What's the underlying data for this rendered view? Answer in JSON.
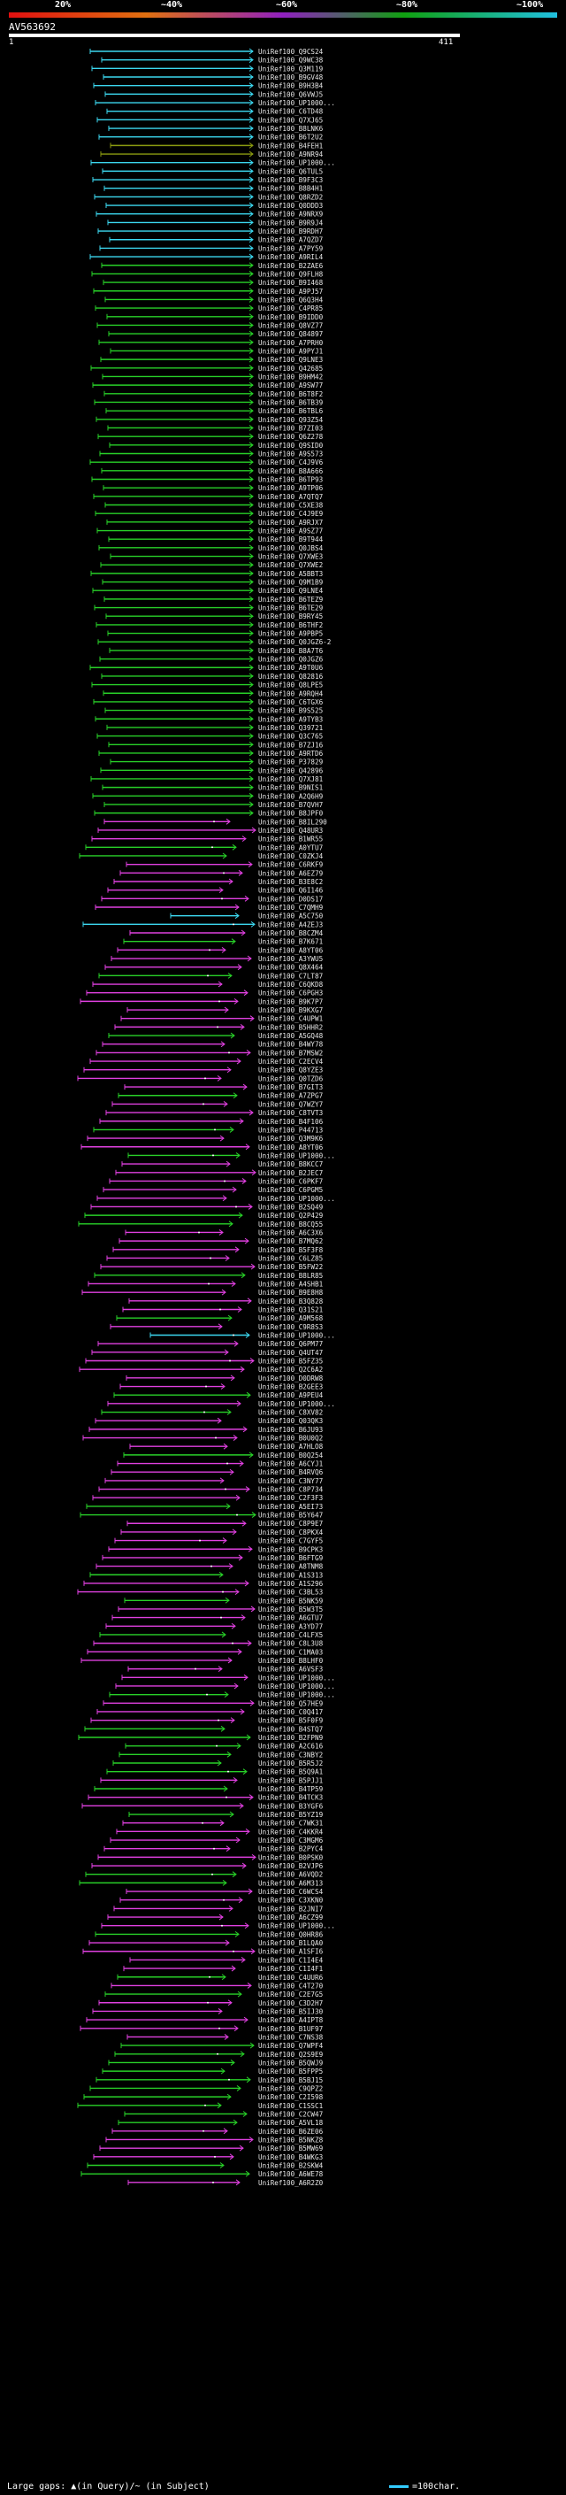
{
  "header": {
    "scale_labels": [
      "20%",
      "~40%",
      "~60%",
      "~80%",
      "~100%"
    ],
    "scale_colors": [
      "#e01010",
      "#e07010",
      "#9020c0",
      "#10a010",
      "#20c0e0"
    ],
    "query_id": "AV563692",
    "query_start": "1",
    "query_end": "411"
  },
  "colors": {
    "cyan": "#3cd8f0",
    "olive": "#8a9a10",
    "green": "#28d028",
    "magenta": "#e040e0"
  },
  "hits": [
    "UniRef100_Q9CS24",
    "UniRef100_Q9WC38",
    "UniRef100_Q3M119",
    "UniRef100_B9GV48",
    "UniRef100_B9H3B4",
    "UniRef100_Q6VWJ5",
    "UniRef100_UP1000...",
    "UniRef100_C6TD48",
    "UniRef100_Q7XJ65",
    "UniRef100_B8LNK6",
    "UniRef100_B6T2U2",
    "UniRef100_B4FEH1",
    "UniRef100_A9NR94",
    "UniRef100_UP1000...",
    "UniRef100_Q6TUL5",
    "UniRef100_B9F3C3",
    "UniRef100_B8B4H1",
    "UniRef100_Q8RZD2",
    "UniRef100_Q0DDD3",
    "UniRef100_A9NRX9",
    "UniRef100_B9R9J4",
    "UniRef100_B9RDH7",
    "UniRef100_A7QZD7",
    "UniRef100_A7PY59",
    "UniRef100_A9RIL4",
    "UniRef100_B2ZAE6",
    "UniRef100_Q9FLH8",
    "UniRef100_B9I468",
    "UniRef100_A9PJ57",
    "UniRef100_Q6Q3H4",
    "UniRef100_C4PR85",
    "UniRef100_B9IDD0",
    "UniRef100_Q8VZ77",
    "UniRef100_Q84897",
    "UniRef100_A7PRH0",
    "UniRef100_A9PYJ1",
    "UniRef100_Q9LNE3",
    "UniRef100_Q42685",
    "UniRef100_B9HM42",
    "UniRef100_A9SW77",
    "UniRef100_B6T8F2",
    "UniRef100_B6TB39",
    "UniRef100_B6TBL6",
    "UniRef100_Q93Z54",
    "UniRef100_B7ZI03",
    "UniRef100_Q6Z278",
    "UniRef100_Q9SID0",
    "UniRef100_A9S573",
    "UniRef100_C4J9V6",
    "UniRef100_B8A666",
    "UniRef100_B6TP93",
    "UniRef100_A9TP06",
    "UniRef100_A7QTQ7",
    "UniRef100_C5XE38",
    "UniRef100_C4J9E9",
    "UniRef100_A9RJX7",
    "UniRef100_A9SZ77",
    "UniRef100_B9T944",
    "UniRef100_Q0JBS4",
    "UniRef100_Q7XWE3",
    "UniRef100_Q7XWE2",
    "UniRef100_A5BBT3",
    "UniRef100_Q9M1B9",
    "UniRef100_Q9LNE4",
    "UniRef100_B6TEZ9",
    "UniRef100_B6TE29",
    "UniRef100_B9RY45",
    "UniRef100_B6THF2",
    "UniRef100_A9PBP5",
    "UniRef100_Q0JGZ6-2",
    "UniRef100_B8A7T6",
    "UniRef100_Q0JGZ6",
    "UniRef100_A9T0U6",
    "UniRef100_Q82816",
    "UniRef100_Q8LPE5",
    "UniRef100_A9RQH4",
    "UniRef100_C6TGX6",
    "UniRef100_B9S525",
    "UniRef100_A9TYB3",
    "UniRef100_Q39721",
    "UniRef100_Q3C765",
    "UniRef100_B7ZJ16",
    "UniRef100_A9RTD6",
    "UniRef100_P37829",
    "UniRef100_Q42896",
    "UniRef100_Q7XJ81",
    "UniRef100_B9NIS1",
    "UniRef100_A2Q6H9",
    "UniRef100_B7QVH7",
    "UniRef100_B8JPF0",
    "UniRef100_B8IL290",
    "UniRef100_Q48UR3",
    "UniRef100_B1WR55",
    "UniRef100_A0YTU7",
    "UniRef100_C0ZKJ4",
    "UniRef100_C6RKF9",
    "UniRef100_A6EZ79",
    "UniRef100_B3E8C2",
    "UniRef100_Q6I146",
    "UniRef100_D0DS17",
    "UniRef100_C7QMH9",
    "UniRef100_A5C750",
    "UniRef100_A4ZEJ3",
    "UniRef100_B8CZM4",
    "UniRef100_B7K671",
    "UniRef100_A8YT06",
    "UniRef100_A3YWU5",
    "UniRef100_Q8X464",
    "UniRef100_C7LT87",
    "UniRef100_C6QKD8",
    "UniRef100_C6PGH3",
    "UniRef100_B9K7P7",
    "UniRef100_B9KXG7",
    "UniRef100_C4UPW1",
    "UniRef100_B5HHR2",
    "UniRef100_A5GQ48",
    "UniRef100_B4WY78",
    "UniRef100_B7MSW2",
    "UniRef100_C2ECV4",
    "UniRef100_Q8YZE3",
    "UniRef100_Q0TZD6",
    "UniRef100_B7GIT3",
    "UniRef100_A7ZPG7",
    "UniRef100_Q7WZY7",
    "UniRef100_C8TVT3",
    "UniRef100_B4F106",
    "UniRef100_P44713",
    "UniRef100_Q3M9K6",
    "UniRef100_A8YT06",
    "UniRef100_UP1000...",
    "UniRef100_B8KCC7",
    "UniRef100_B2JEC7",
    "UniRef100_C6PKF7",
    "UniRef100_C6PGM5",
    "UniRef100_UP1000...",
    "UniRef100_B2SQ49",
    "UniRef100_Q2P429",
    "UniRef100_B8CQ55",
    "UniRef100_A6C3X6",
    "UniRef100_B7MQ62",
    "UniRef100_B5F3F8",
    "UniRef100_C6LZ85",
    "UniRef100_B5FW22",
    "UniRef100_B8LR85",
    "UniRef100_A4SHB1",
    "UniRef100_B9E8H8",
    "UniRef100_B3Q828",
    "UniRef100_Q31S21",
    "UniRef100_A9M568",
    "UniRef100_C9R8S3",
    "UniRef100_UP1000...",
    "UniRef100_Q6PM77",
    "UniRef100_Q4UT47",
    "UniRef100_B5FZ35",
    "UniRef100_Q2C6A2",
    "UniRef100_D0DRW8",
    "UniRef100_B2GEE3",
    "UniRef100_A9PEU4",
    "UniRef100_UP1000...",
    "UniRef100_C8XV82",
    "UniRef100_Q03QK3",
    "UniRef100_B6JU93",
    "UniRef100_B0U0Q2",
    "UniRef100_A7HLO8",
    "UniRef100_B0Q254",
    "UniRef100_A6CYJ1",
    "UniRef100_B4RVQ6",
    "UniRef100_C3NY77",
    "UniRef100_C8P734",
    "UniRef100_C2F3F3",
    "UniRef100_A5EI73",
    "UniRef100_B5Y647",
    "UniRef100_C8P9E7",
    "UniRef100_C8PKX4",
    "UniRef100_C7GYF5",
    "UniRef100_B9CPK3",
    "UniRef100_B6FTG9",
    "UniRef100_A8TNM8",
    "UniRef100_A1S313",
    "UniRef100_A1S296",
    "UniRef100_C3BL53",
    "UniRef100_B5NK59",
    "UniRef100_B5W3T5",
    "UniRef100_A6GTU7",
    "UniRef100_A3YD77",
    "UniRef100_C4LFX5",
    "UniRef100_C8L3U8",
    "UniRef100_C1MA03",
    "UniRef100_B8LHF0",
    "UniRef100_A6VSF3",
    "UniRef100_UP1000...",
    "UniRef100_UP1000...",
    "UniRef100_UP1000...",
    "UniRef100_Q57HE9",
    "UniRef100_C0Q417",
    "UniRef100_B5F0F9",
    "UniRef100_B4STQ7",
    "UniRef100_B2FPN9",
    "UniRef100_A2C616",
    "UniRef100_C3NBY2",
    "UniRef100_B5R5J2",
    "UniRef100_B5Q9A1",
    "UniRef100_B5PJJ1",
    "UniRef100_B4TP59",
    "UniRef100_B4TCK3",
    "UniRef100_B3YGF6",
    "UniRef100_B5YZ19",
    "UniRef100_C7WK31",
    "UniRef100_C4KKR4",
    "UniRef100_C3MGM6",
    "UniRef100_B2PYC4",
    "UniRef100_B0PSK0",
    "UniRef100_B2VJP6",
    "UniRef100_A6VQD2",
    "UniRef100_A6M313",
    "UniRef100_C6WCS4",
    "UniRef100_C3XKN0",
    "UniRef100_B2JNI7",
    "UniRef100_A6CZ99",
    "UniRef100_UP1000...",
    "UniRef100_Q0HR86",
    "UniRef100_B1LQA0",
    "UniRef100_A1SFI6",
    "UniRef100_C1I4E4",
    "UniRef100_C1I4F1",
    "UniRef100_C4UUR6",
    "UniRef100_C4T270",
    "UniRef100_C2E7G5",
    "UniRef100_C3D2H7",
    "UniRef100_B5IJ30",
    "UniRef100_A4IPT8",
    "UniRef100_B1UF97",
    "UniRef100_C7NS38",
    "UniRef100_Q7WPF4",
    "UniRef100_Q2S9E9",
    "UniRef100_B5QWJ9",
    "UniRef100_B5FPP5",
    "UniRef100_B5BJ15",
    "UniRef100_C9QPZ2",
    "UniRef100_C2I598",
    "UniRef100_C1SSC1",
    "UniRef100_C2CW47",
    "UniRef100_A5VL18",
    "UniRef100_B6ZE06",
    "UniRef100_B5NKZ8",
    "UniRef100_B5MW69",
    "UniRef100_B4WKG3",
    "UniRef100_B2SKW4",
    "UniRef100_A6WE78",
    "UniRef100_A6R2Z0"
  ],
  "footer": {
    "text": "Large gaps: ▲(in Query)/~ (in Subject)",
    "scale": "=100char."
  }
}
